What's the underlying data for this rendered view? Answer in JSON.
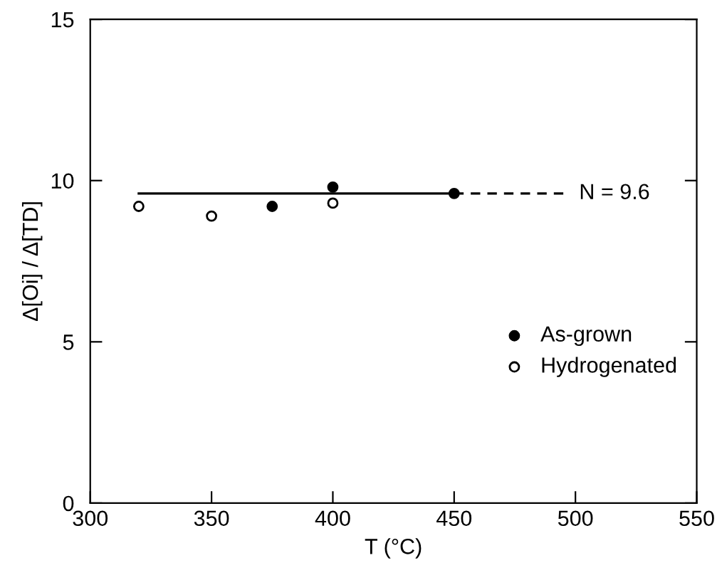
{
  "chart_data": {
    "type": "scatter",
    "xlabel": "T (°C)",
    "ylabel": "Δ[Oi] / Δ[TD]",
    "xlim": [
      300,
      550
    ],
    "xticks": [
      300,
      350,
      400,
      450,
      500,
      550
    ],
    "ylim": [
      0,
      15
    ],
    "yticks": [
      0,
      5,
      10,
      15
    ],
    "series": [
      {
        "name": "As-grown",
        "color": "#000000",
        "marker": "circle",
        "x": [
          375,
          400,
          450
        ],
        "values": [
          9.2,
          9.8,
          9.6
        ]
      },
      {
        "name": "Hydrogenated",
        "color": "#ffffff",
        "marker": "circle",
        "x": [
          320,
          350,
          400
        ],
        "values": [
          9.2,
          8.9,
          9.3
        ]
      },
      {
        "type": "line",
        "color": "#000000",
        "line_style": "solid",
        "x": [
          320,
          450
        ],
        "values": [
          9.6,
          9.6
        ]
      },
      {
        "type": "line",
        "color": "#000000",
        "line_style": "dashed",
        "x": [
          450,
          495
        ],
        "values": [
          9.6,
          9.6
        ]
      }
    ],
    "annotations": [
      "N = 9.6"
    ],
    "legend": "bottom right",
    "grid": false
  }
}
